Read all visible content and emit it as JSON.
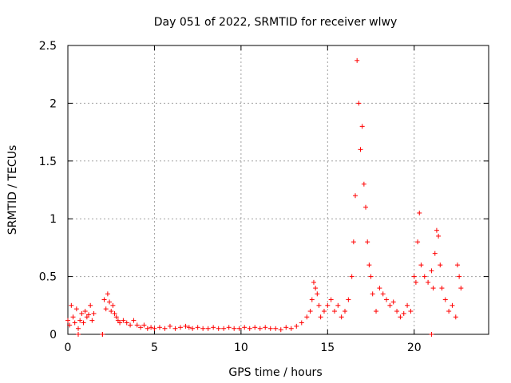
{
  "chart_data": {
    "type": "scatter",
    "title": "Day 051 of 2022, SRMTID for receiver wlwy",
    "xlabel": "GPS time / hours",
    "ylabel": "SRMTID / TECUs",
    "xlim": [
      0,
      24.3
    ],
    "ylim": [
      0,
      2.5
    ],
    "grid": true,
    "marker": "+",
    "series_color": "#ff0000",
    "x_ticks": [
      0,
      5,
      10,
      15,
      20
    ],
    "y_ticks": [
      0,
      0.5,
      1,
      1.5,
      2,
      2.5
    ],
    "x_tick_labels": [
      "0",
      "5",
      "10",
      "15",
      "20"
    ],
    "y_tick_labels": [
      "0",
      "0.5",
      "1",
      "1.5",
      "2",
      "2.5"
    ],
    "series": [
      {
        "name": "SRMTID",
        "x": [
          0.0,
          0.1,
          0.2,
          0.3,
          0.4,
          0.5,
          0.6,
          0.7,
          0.8,
          0.9,
          1.0,
          1.1,
          1.2,
          1.3,
          1.4,
          1.5,
          2.0,
          2.1,
          2.2,
          2.3,
          2.4,
          2.5,
          2.6,
          2.7,
          2.8,
          2.9,
          3.0,
          3.2,
          3.4,
          3.6,
          3.8,
          4.0,
          4.2,
          4.4,
          4.6,
          4.8,
          5.0,
          5.3,
          5.6,
          5.9,
          6.2,
          6.5,
          6.8,
          7.0,
          7.2,
          7.5,
          7.8,
          8.1,
          8.4,
          8.7,
          9.0,
          9.3,
          9.6,
          9.9,
          10.2,
          10.5,
          10.8,
          11.1,
          11.4,
          11.7,
          12.0,
          12.3,
          12.6,
          12.9,
          13.2,
          13.5,
          13.8,
          14.0,
          14.1,
          14.2,
          14.3,
          14.4,
          14.5,
          14.6,
          14.8,
          15.0,
          15.2,
          15.4,
          15.6,
          15.8,
          16.0,
          16.2,
          16.4,
          16.5,
          16.6,
          16.7,
          16.8,
          16.9,
          17.0,
          17.1,
          17.2,
          17.3,
          17.4,
          17.5,
          17.6,
          17.8,
          18.0,
          18.2,
          18.4,
          18.6,
          18.8,
          19.0,
          19.2,
          19.4,
          19.6,
          19.8,
          20.0,
          20.1,
          20.2,
          20.3,
          20.4,
          20.6,
          20.8,
          21.0,
          21.1,
          21.2,
          21.3,
          21.4,
          21.5,
          21.6,
          21.8,
          22.0,
          22.2,
          22.4,
          22.5,
          22.6,
          22.7
        ],
        "y": [
          0.12,
          0.08,
          0.25,
          0.15,
          0.1,
          0.22,
          0.05,
          0.12,
          0.18,
          0.1,
          0.2,
          0.15,
          0.17,
          0.25,
          0.12,
          0.18,
          0.0,
          0.3,
          0.22,
          0.35,
          0.28,
          0.2,
          0.25,
          0.18,
          0.15,
          0.12,
          0.1,
          0.12,
          0.1,
          0.08,
          0.12,
          0.08,
          0.06,
          0.08,
          0.05,
          0.06,
          0.05,
          0.06,
          0.05,
          0.07,
          0.05,
          0.06,
          0.07,
          0.06,
          0.05,
          0.06,
          0.05,
          0.05,
          0.06,
          0.05,
          0.05,
          0.06,
          0.05,
          0.05,
          0.06,
          0.05,
          0.06,
          0.05,
          0.06,
          0.05,
          0.05,
          0.04,
          0.06,
          0.05,
          0.07,
          0.1,
          0.15,
          0.2,
          0.3,
          0.45,
          0.4,
          0.35,
          0.25,
          0.15,
          0.2,
          0.25,
          0.3,
          0.2,
          0.25,
          0.15,
          0.2,
          0.3,
          0.5,
          0.8,
          1.2,
          2.37,
          2.0,
          1.6,
          1.8,
          1.3,
          1.1,
          0.8,
          0.6,
          0.5,
          0.35,
          0.2,
          0.4,
          0.35,
          0.3,
          0.25,
          0.28,
          0.2,
          0.15,
          0.18,
          0.25,
          0.2,
          0.5,
          0.45,
          0.8,
          1.05,
          0.6,
          0.5,
          0.45,
          0.55,
          0.4,
          0.7,
          0.9,
          0.85,
          0.6,
          0.4,
          0.3,
          0.2,
          0.25,
          0.15,
          0.6,
          0.5,
          0.4
        ],
        "extra_outliers": {
          "x": [
            0.6,
            2.0,
            21.0
          ],
          "y": [
            0.0,
            0.0,
            0.0
          ]
        }
      }
    ]
  }
}
